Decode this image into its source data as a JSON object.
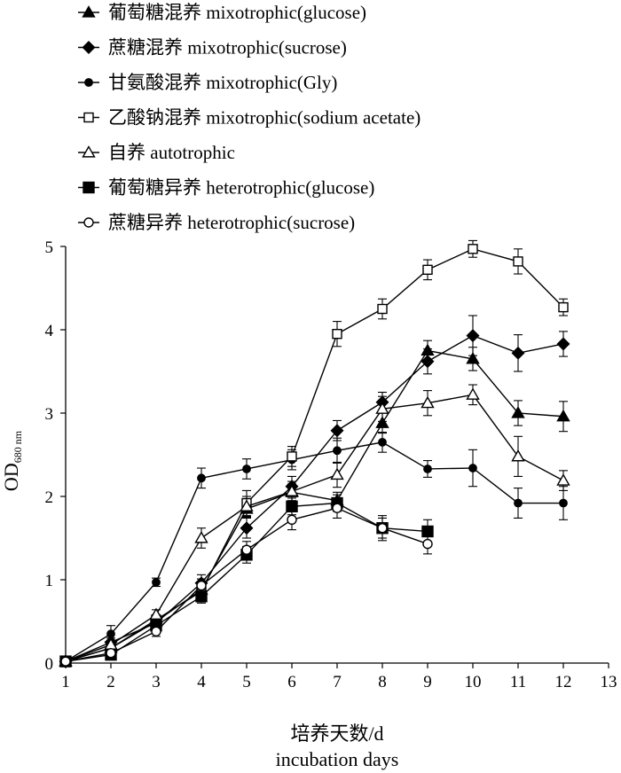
{
  "chart_data": {
    "type": "line",
    "title": "",
    "xlabel": [
      "培养天数/d",
      "incubation days"
    ],
    "ylabel": "OD",
    "ylabel_sub": "680 nm",
    "xlim": [
      1,
      13
    ],
    "ylim": [
      0,
      5
    ],
    "xticks": [
      1,
      2,
      3,
      4,
      5,
      6,
      7,
      8,
      9,
      10,
      11,
      12,
      13
    ],
    "yticks": [
      0,
      1,
      2,
      3,
      4,
      5
    ],
    "grid": false,
    "legend_position": "top-left",
    "series": [
      {
        "name": "葡萄糖混养 mixotrophic(glucose)",
        "marker": "triangle-filled",
        "x": [
          1,
          2,
          3,
          4,
          5,
          6,
          7,
          8,
          9,
          10,
          11,
          12
        ],
        "y": [
          0.02,
          0.18,
          0.5,
          0.88,
          1.85,
          2.05,
          1.95,
          2.88,
          3.75,
          3.65,
          3.0,
          2.96
        ],
        "err": [
          0,
          0.05,
          0.06,
          0.08,
          0.1,
          0.1,
          0.1,
          0.12,
          0.12,
          0.14,
          0.15,
          0.18
        ]
      },
      {
        "name": "蔗糖混养 mixotrophic(sucrose)",
        "marker": "diamond-filled",
        "x": [
          1,
          2,
          3,
          4,
          5,
          6,
          7,
          8,
          9,
          10,
          11,
          12
        ],
        "y": [
          0.02,
          0.25,
          0.48,
          0.96,
          1.62,
          2.12,
          2.79,
          3.13,
          3.62,
          3.93,
          3.72,
          3.83
        ],
        "err": [
          0,
          0.05,
          0.06,
          0.1,
          0.12,
          0.12,
          0.12,
          0.12,
          0.15,
          0.24,
          0.22,
          0.15
        ]
      },
      {
        "name": "甘氨酸混养 mixotrophic(Gly)",
        "marker": "circle-filled",
        "x": [
          1,
          2,
          3,
          4,
          5,
          6,
          7,
          8,
          9,
          10,
          11,
          12
        ],
        "y": [
          0.02,
          0.35,
          0.97,
          2.22,
          2.33,
          2.44,
          2.55,
          2.65,
          2.33,
          2.34,
          1.92,
          1.92
        ],
        "err": [
          0,
          0.1,
          0.05,
          0.12,
          0.12,
          0.12,
          0.15,
          0.12,
          0.1,
          0.22,
          0.18,
          0.2
        ]
      },
      {
        "name": "乙酸钠混养 mixotrophic(sodium acetate)",
        "marker": "square-open",
        "x": [
          1,
          2,
          3,
          4,
          5,
          6,
          7,
          8,
          9,
          10,
          11,
          12
        ],
        "y": [
          0.02,
          0.18,
          0.52,
          0.86,
          1.92,
          2.48,
          3.95,
          4.25,
          4.72,
          4.97,
          4.82,
          4.27
        ],
        "err": [
          0,
          0.05,
          0.06,
          0.1,
          0.15,
          0.12,
          0.15,
          0.12,
          0.12,
          0.1,
          0.15,
          0.1
        ]
      },
      {
        "name": "自养 autotrophic",
        "marker": "triangle-open",
        "x": [
          1,
          2,
          3,
          4,
          5,
          6,
          7,
          8,
          9,
          10,
          11,
          12
        ],
        "y": [
          0.02,
          0.22,
          0.58,
          1.5,
          1.88,
          2.06,
          2.26,
          3.05,
          3.12,
          3.22,
          2.48,
          2.19
        ],
        "err": [
          0,
          0.05,
          0.06,
          0.12,
          0.12,
          0.12,
          0.15,
          0.15,
          0.15,
          0.12,
          0.24,
          0.12
        ]
      },
      {
        "name": "葡萄糖异养 heterotrophic(glucose)",
        "marker": "square-filled",
        "x": [
          1,
          2,
          3,
          4,
          5,
          6,
          7,
          8,
          9
        ],
        "y": [
          0.02,
          0.1,
          0.45,
          0.8,
          1.3,
          1.88,
          1.92,
          1.62,
          1.58
        ],
        "err": [
          0,
          0.04,
          0.06,
          0.08,
          0.1,
          0.1,
          0.1,
          0.15,
          0.14
        ]
      },
      {
        "name": "蔗糖异养 heterotrophic(sucrose)",
        "marker": "circle-open",
        "x": [
          1,
          2,
          3,
          4,
          5,
          6,
          7,
          8,
          9
        ],
        "y": [
          0.02,
          0.12,
          0.38,
          0.93,
          1.36,
          1.72,
          1.86,
          1.62,
          1.43
        ],
        "err": [
          0,
          0.04,
          0.06,
          0.08,
          0.1,
          0.12,
          0.12,
          0.12,
          0.12
        ]
      }
    ]
  }
}
